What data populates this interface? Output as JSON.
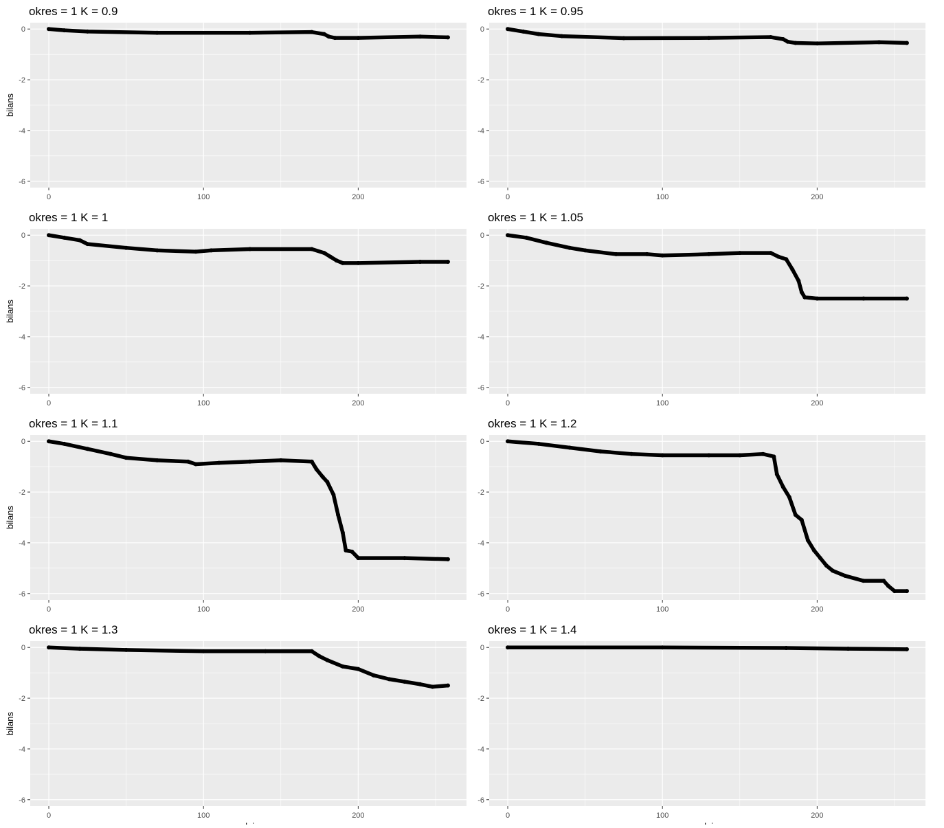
{
  "chart_data": {
    "type": "scatter",
    "xlabel": "dni",
    "ylabel": "bilans",
    "xlim": [
      -12,
      270
    ],
    "ylim": [
      -6.25,
      0.25
    ],
    "x_ticks": [
      0,
      100,
      200
    ],
    "y_ticks": [
      0,
      -2,
      -4,
      -6
    ],
    "x_tick_labels": [
      "0",
      "100",
      "200"
    ],
    "y_tick_labels": [
      "0",
      "-2",
      "-4",
      "-6"
    ],
    "grid": true,
    "colors": {
      "panel_bg": "#ebebeb",
      "grid": "#ffffff",
      "points": "#000000"
    },
    "panels": [
      {
        "title": "okres = 1 K = 0.9",
        "y_ticks": [
          0,
          -2,
          -4,
          -6
        ],
        "ylim": [
          -6.25,
          0.25
        ],
        "x": [
          0,
          10,
          25,
          70,
          130,
          170,
          178,
          181,
          185,
          200,
          240,
          258
        ],
        "y": [
          0,
          -0.05,
          -0.1,
          -0.15,
          -0.15,
          -0.12,
          -0.2,
          -0.3,
          -0.35,
          -0.35,
          -0.3,
          -0.33
        ]
      },
      {
        "title": "okres = 1 K = 0.95",
        "y_ticks": [
          0,
          -2,
          -4,
          -6
        ],
        "ylim": [
          -6.25,
          0.25
        ],
        "x": [
          0,
          10,
          20,
          35,
          75,
          130,
          170,
          178,
          181,
          186,
          200,
          240,
          258
        ],
        "y": [
          0,
          -0.1,
          -0.2,
          -0.28,
          -0.36,
          -0.35,
          -0.32,
          -0.4,
          -0.5,
          -0.55,
          -0.57,
          -0.52,
          -0.55
        ]
      },
      {
        "title": "okres = 1 K = 1",
        "y_ticks": [
          0,
          -2,
          -4,
          -6
        ],
        "ylim": [
          -6.25,
          0.25
        ],
        "x": [
          0,
          10,
          20,
          25,
          50,
          70,
          95,
          105,
          130,
          170,
          178,
          182,
          186,
          190,
          200,
          240,
          258
        ],
        "y": [
          0,
          -0.1,
          -0.2,
          -0.35,
          -0.5,
          -0.6,
          -0.65,
          -0.6,
          -0.55,
          -0.55,
          -0.7,
          -0.85,
          -1.0,
          -1.1,
          -1.1,
          -1.05,
          -1.05
        ]
      },
      {
        "title": "okres = 1 K = 1.05",
        "y_ticks": [
          0,
          -2,
          -4,
          -6
        ],
        "ylim": [
          -6.25,
          0.25
        ],
        "x": [
          0,
          12,
          25,
          40,
          50,
          70,
          90,
          100,
          130,
          150,
          170,
          175,
          180,
          184,
          188,
          190,
          192,
          200,
          230,
          258
        ],
        "y": [
          0,
          -0.1,
          -0.3,
          -0.5,
          -0.6,
          -0.75,
          -0.75,
          -0.8,
          -0.75,
          -0.7,
          -0.7,
          -0.85,
          -0.95,
          -1.35,
          -1.8,
          -2.25,
          -2.45,
          -2.5,
          -2.5,
          -2.5
        ]
      },
      {
        "title": "okres = 1 K = 1.1",
        "y_ticks": [
          0,
          -2,
          -4,
          -6
        ],
        "ylim": [
          -6.25,
          0.25
        ],
        "x": [
          0,
          10,
          25,
          40,
          50,
          70,
          90,
          95,
          110,
          130,
          150,
          170,
          173,
          177,
          180,
          184,
          187,
          190,
          192,
          196,
          200,
          230,
          258
        ],
        "y": [
          0,
          -0.1,
          -0.3,
          -0.5,
          -0.65,
          -0.75,
          -0.8,
          -0.9,
          -0.85,
          -0.8,
          -0.75,
          -0.8,
          -1.1,
          -1.4,
          -1.6,
          -2.1,
          -2.9,
          -3.6,
          -4.3,
          -4.35,
          -4.6,
          -4.6,
          -4.65
        ]
      },
      {
        "title": "okres = 1 K = 1.2",
        "y_ticks": [
          0,
          -2,
          -4,
          -6
        ],
        "ylim": [
          -6.25,
          0.25
        ],
        "x": [
          0,
          20,
          40,
          60,
          80,
          100,
          130,
          150,
          165,
          172,
          174,
          178,
          182,
          186,
          190,
          194,
          198,
          202,
          206,
          210,
          218,
          230,
          243,
          246,
          250,
          258
        ],
        "y": [
          0,
          -0.1,
          -0.25,
          -0.4,
          -0.5,
          -0.55,
          -0.55,
          -0.55,
          -0.5,
          -0.6,
          -1.3,
          -1.8,
          -2.2,
          -2.9,
          -3.1,
          -3.9,
          -4.3,
          -4.6,
          -4.9,
          -5.1,
          -5.3,
          -5.5,
          -5.5,
          -5.7,
          -5.9,
          -5.9
        ]
      },
      {
        "title": "okres = 1 K = 1.3",
        "y_ticks": [
          0,
          -2,
          -4,
          -6
        ],
        "ylim": [
          -6.25,
          0.25
        ],
        "x": [
          0,
          20,
          50,
          100,
          140,
          170,
          175,
          180,
          190,
          200,
          210,
          220,
          230,
          240,
          248,
          258
        ],
        "y": [
          0,
          -0.05,
          -0.1,
          -0.15,
          -0.15,
          -0.15,
          -0.35,
          -0.5,
          -0.75,
          -0.85,
          -1.1,
          -1.25,
          -1.35,
          -1.45,
          -1.55,
          -1.5
        ]
      },
      {
        "title": "okres = 1 K = 1.4",
        "y_ticks": [
          0,
          -2,
          -4,
          -6
        ],
        "ylim": [
          -6.25,
          0.25
        ],
        "x": [
          0,
          100,
          180,
          220,
          258
        ],
        "y": [
          0,
          0,
          -0.02,
          -0.05,
          -0.07
        ]
      }
    ]
  }
}
